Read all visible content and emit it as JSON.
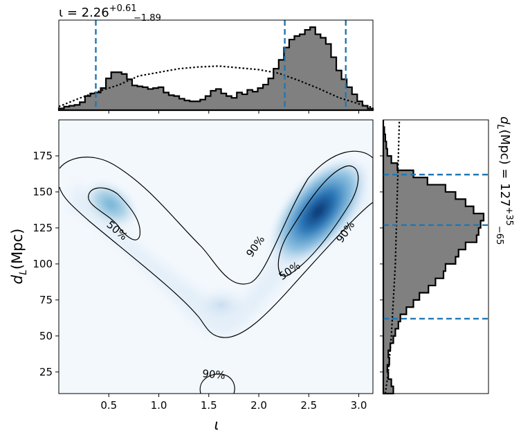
{
  "chart_data": {
    "type": "heatmap",
    "subtype": "corner-plot",
    "main": {
      "x_label": "ι",
      "y_label": "d",
      "y_label_sub": "L",
      "y_label_unit": "(Mpc)",
      "xlim": [
        0.0,
        3.1416
      ],
      "ylim": [
        10,
        200
      ],
      "x_ticks": [
        0.5,
        1.0,
        1.5,
        2.0,
        2.5,
        3.0
      ],
      "x_tick_labels": [
        "0.5",
        "1.0",
        "1.5",
        "2.0",
        "2.5",
        "3.0"
      ],
      "y_ticks": [
        25,
        50,
        75,
        100,
        125,
        150,
        175
      ],
      "y_tick_labels": [
        "25",
        "50",
        "75",
        "100",
        "125",
        "150",
        "175"
      ],
      "colormap": "Blues",
      "density_peaks": [
        {
          "x": 2.55,
          "y": 135,
          "weight": 1.0
        },
        {
          "x": 0.55,
          "y": 143,
          "weight": 0.4
        }
      ],
      "contour_labels": [
        {
          "text": "50%",
          "x": 0.58,
          "y": 123
        },
        {
          "text": "90%",
          "x": 1.97,
          "y": 112
        },
        {
          "text": "50%",
          "x": 2.31,
          "y": 95
        },
        {
          "text": "90%",
          "x": 2.87,
          "y": 122
        },
        {
          "text": "90%",
          "x": 1.55,
          "y": 23
        }
      ]
    },
    "top": {
      "title_prefix": "ι = 2.26",
      "title_sup": "+0.61",
      "title_sub": "−1.89",
      "median": 2.26,
      "lower": 0.37,
      "upper": 2.87,
      "bins": [
        0.02,
        0.04,
        0.05,
        0.06,
        0.09,
        0.16,
        0.19,
        0.2,
        0.25,
        0.36,
        0.43,
        0.43,
        0.41,
        0.35,
        0.28,
        0.27,
        0.26,
        0.24,
        0.25,
        0.26,
        0.2,
        0.17,
        0.16,
        0.13,
        0.11,
        0.1,
        0.1,
        0.12,
        0.16,
        0.22,
        0.24,
        0.19,
        0.16,
        0.14,
        0.2,
        0.18,
        0.23,
        0.21,
        0.25,
        0.29,
        0.36,
        0.47,
        0.57,
        0.71,
        0.8,
        0.84,
        0.86,
        0.91,
        0.94,
        0.86,
        0.82,
        0.75,
        0.6,
        0.45,
        0.35,
        0.26,
        0.18,
        0.1,
        0.05,
        0.02
      ],
      "prior_x": [
        0.0,
        0.2,
        0.4,
        0.6,
        0.8,
        1.0,
        1.2,
        1.4,
        1.6,
        1.8,
        2.0,
        2.2,
        2.4,
        2.6,
        2.8,
        3.0,
        3.14
      ],
      "prior_y": [
        0.04,
        0.13,
        0.21,
        0.28,
        0.38,
        0.42,
        0.46,
        0.48,
        0.49,
        0.47,
        0.45,
        0.41,
        0.33,
        0.24,
        0.14,
        0.07,
        0.03
      ]
    },
    "right": {
      "title_prefix": "d",
      "title_sub_L": "L",
      "title_unit": "(Mpc) = 127",
      "title_sup": "+35",
      "title_sub": "−65",
      "median": 127,
      "lower": 62,
      "upper": 162,
      "bin_edges_start": 10,
      "bin_width": 5,
      "bins": [
        0.1,
        0.08,
        0.05,
        0.04,
        0.06,
        0.05,
        0.07,
        0.1,
        0.12,
        0.15,
        0.17,
        0.23,
        0.3,
        0.36,
        0.45,
        0.52,
        0.6,
        0.62,
        0.72,
        0.75,
        0.82,
        0.93,
        0.95,
        0.97,
        1.0,
        0.9,
        0.82,
        0.72,
        0.62,
        0.44,
        0.3,
        0.14,
        0.08,
        0.04,
        0.03,
        0.02,
        0.01,
        0.0
      ],
      "prior_y": [
        10,
        25,
        50,
        75,
        100,
        125,
        150,
        175,
        200
      ],
      "prior_x": [
        0.02,
        0.05,
        0.08,
        0.1,
        0.12,
        0.13,
        0.14,
        0.15,
        0.16
      ]
    }
  }
}
